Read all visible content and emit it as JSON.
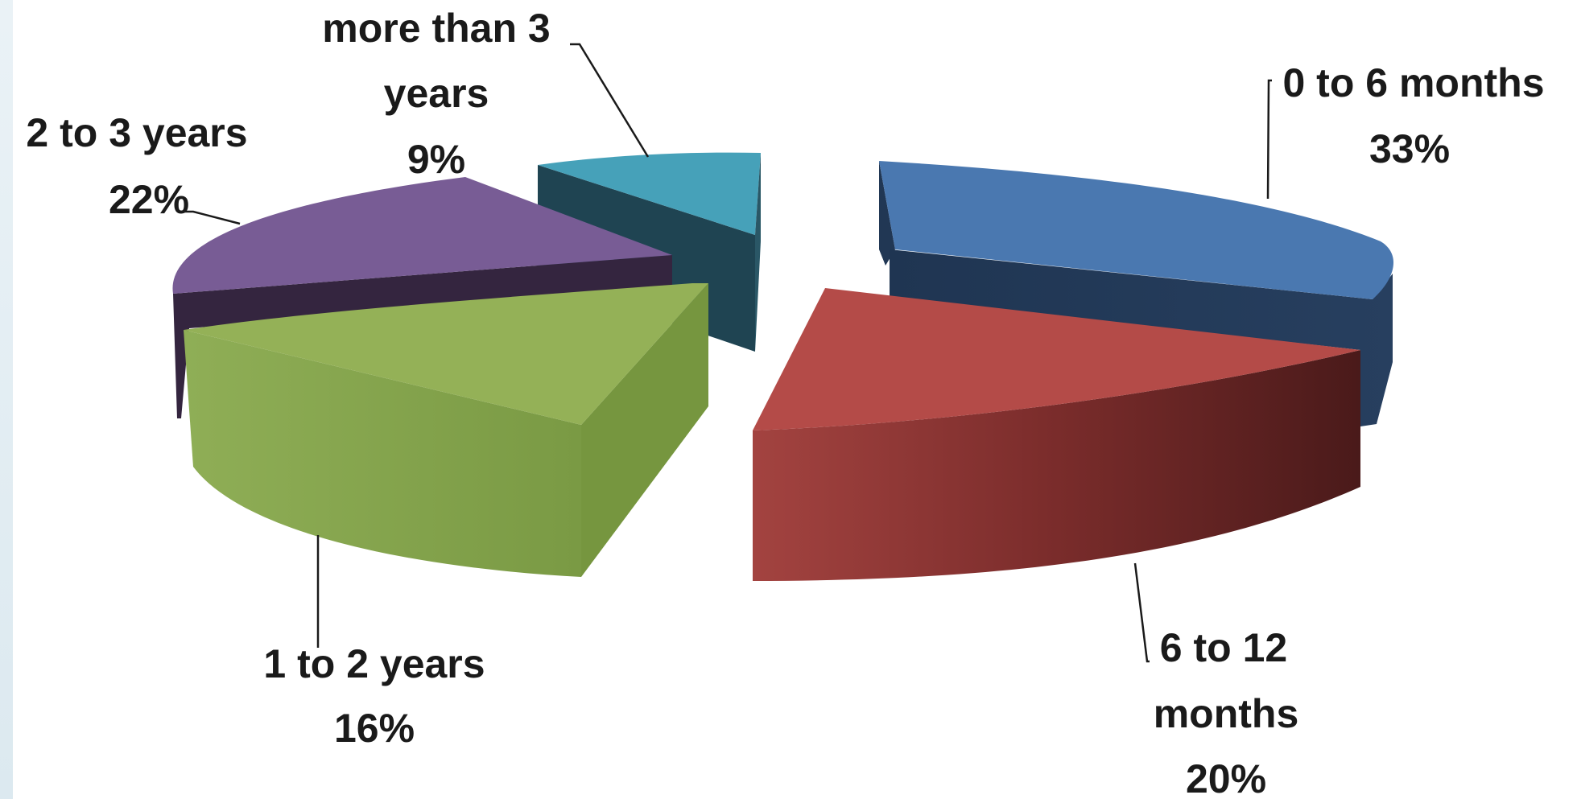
{
  "chart_data": {
    "type": "pie",
    "title": "",
    "slices": [
      {
        "label_lines": [
          "0 to 6 months"
        ],
        "value_text": "33%",
        "value": 33,
        "color": "#4a78b0",
        "side_color": "#213754"
      },
      {
        "label_lines": [
          "6 to 12",
          "months"
        ],
        "value_text": "20%",
        "value": 20,
        "color": "#b44b48",
        "side_color": "#6b2322"
      },
      {
        "label_lines": [
          "1 to 2 years"
        ],
        "value_text": "16%",
        "value": 16,
        "color": "#94b157",
        "side_color": "#6d8a3a"
      },
      {
        "label_lines": [
          "2 to 3 years"
        ],
        "value_text": "22%",
        "value": 22,
        "color": "#785c95",
        "side_color": "#34253f"
      },
      {
        "label_lines": [
          "more than 3",
          "years"
        ],
        "value_text": "9%",
        "value": 9,
        "color": "#46a1b9",
        "side_color": "#1f4452"
      }
    ]
  }
}
